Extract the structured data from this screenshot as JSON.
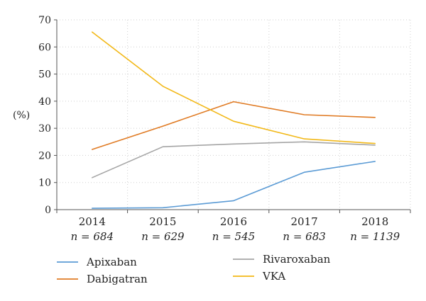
{
  "chart_data": {
    "type": "line",
    "ylabel": "(%)",
    "ylim": [
      0,
      70
    ],
    "yticks": [
      "0",
      "10",
      "20",
      "30",
      "40",
      "50",
      "60",
      "70"
    ],
    "grid": true,
    "legend_placement": "bottom",
    "categories": [
      "2014",
      "2015",
      "2016",
      "2017",
      "2018"
    ],
    "n_labels": [
      "n = 684",
      "n = 629",
      "n = 545",
      "n = 683",
      "n = 1139"
    ],
    "series": [
      {
        "name": "Apixaban",
        "color": "#5b9bd5",
        "values": [
          0.5,
          0.7,
          3.3,
          13.8,
          17.8
        ]
      },
      {
        "name": "Dabigatran",
        "color": "#e07b24",
        "values": [
          22.2,
          30.8,
          39.8,
          35.0,
          34.0
        ]
      },
      {
        "name": "Rivaroxaban",
        "color": "#a5a5a5",
        "values": [
          11.8,
          23.2,
          24.2,
          25.0,
          23.8
        ]
      },
      {
        "name": "VKA",
        "color": "#f2b817",
        "values": [
          65.5,
          45.5,
          32.6,
          26.1,
          24.4
        ]
      }
    ]
  }
}
